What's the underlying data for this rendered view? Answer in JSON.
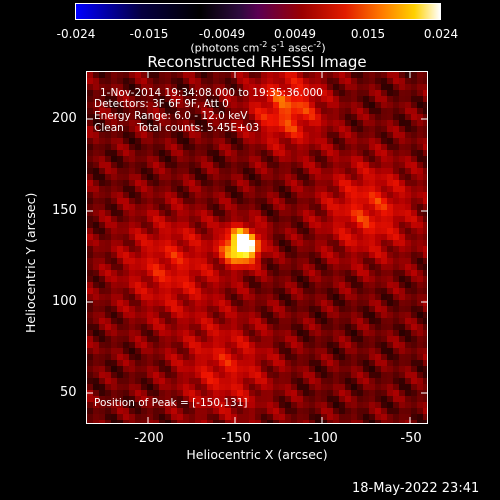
{
  "colorbar": {
    "ticks": [
      "-0.024",
      "-0.015",
      "-0.0049",
      "0.0049",
      "0.015",
      "0.024"
    ],
    "units": "(photons cm",
    "units_parts": {
      "p1": "(photons cm",
      "sup1": "-2",
      "p2": " s",
      "sup2": "-1",
      "p3": " asec",
      "sup3": "-2",
      "p4": ")"
    },
    "colors": [
      "#0000ff",
      "#050040",
      "#000000",
      "#5a0052",
      "#e11c00",
      "#ff7a00",
      "#ffd100",
      "#ffffff"
    ]
  },
  "title": "Reconstructed RHESSI Image",
  "annotations": {
    "time_range": "1-Nov-2014 19:34:08.000 to 19:35:36.000",
    "detectors": "Detectors: 3F 6F 9F, Att 0",
    "energy": "Energy Range: 6.0 - 12.0 keV",
    "clean": "Clean    Total counts: 5.45E+03",
    "peak": "Position of Peak = [-150,131]"
  },
  "axes": {
    "xlabel": "Heliocentric X (arcsec)",
    "ylabel": "Heliocentric Y (arcsec)",
    "xticks": [
      "-200",
      "-150",
      "-100",
      "-50"
    ],
    "yticks": [
      "200",
      "150",
      "100",
      "50"
    ],
    "xlim": [
      -237,
      -47
    ],
    "ylim": [
      35,
      225
    ]
  },
  "footer": {
    "timestamp": "18-May-2022 23:41"
  },
  "chart_data": {
    "type": "heatmap",
    "title": "Reconstructed RHESSI Image",
    "xlabel": "Heliocentric X (arcsec)",
    "ylabel": "Heliocentric Y (arcsec)",
    "xlim": [
      -237,
      -47
    ],
    "ylim": [
      35,
      225
    ],
    "colorbar_range": [
      -0.024,
      0.024
    ],
    "peak": [
      -150,
      131
    ],
    "sources": [
      {
        "x": -150,
        "y": 131,
        "amp": 1.0,
        "sigma": 7
      },
      {
        "x": -125,
        "y": 205,
        "amp": 0.45,
        "sigma": 14
      },
      {
        "x": -80,
        "y": 150,
        "amp": 0.35,
        "sigma": 18
      },
      {
        "x": -190,
        "y": 120,
        "amp": 0.3,
        "sigma": 20
      },
      {
        "x": -160,
        "y": 65,
        "amp": 0.28,
        "sigma": 18
      }
    ]
  }
}
